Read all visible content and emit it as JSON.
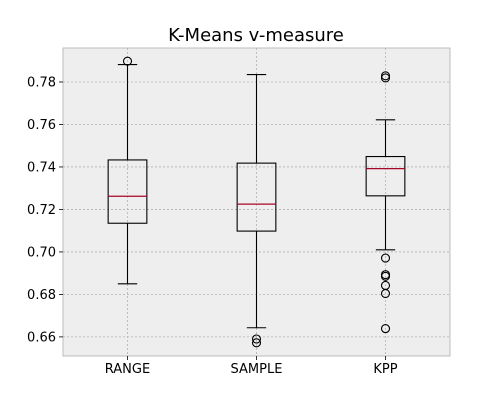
{
  "chart_data": {
    "type": "box",
    "title": "K-Means v-measure",
    "xlabel": "",
    "ylabel": "",
    "ylim": [
      0.651,
      0.796
    ],
    "yticks": [
      0.66,
      0.68,
      0.7,
      0.72,
      0.74,
      0.76,
      0.78
    ],
    "ytick_labels": [
      "0.66",
      "0.68",
      "0.70",
      "0.72",
      "0.74",
      "0.76",
      "0.78"
    ],
    "grid": true,
    "categories": [
      "RANGE",
      "SAMPLE",
      "KPP"
    ],
    "boxes": [
      {
        "name": "RANGE",
        "whisker_low": 0.685,
        "q1": 0.7135,
        "median": 0.7262,
        "q3": 0.7433,
        "whisker_high": 0.7882,
        "fliers": [
          0.7898
        ]
      },
      {
        "name": "SAMPLE",
        "whisker_low": 0.6643,
        "q1": 0.7098,
        "median": 0.7225,
        "q3": 0.7418,
        "whisker_high": 0.7835,
        "fliers": [
          0.659,
          0.6572
        ]
      },
      {
        "name": "KPP",
        "whisker_low": 0.701,
        "q1": 0.7264,
        "median": 0.7392,
        "q3": 0.7449,
        "whisker_high": 0.7622,
        "fliers": [
          0.7829,
          0.7819,
          0.6971,
          0.6893,
          0.6885,
          0.6842,
          0.6804,
          0.6639
        ]
      }
    ],
    "colors": {
      "figure_bg": "#ffffff",
      "axes_bg": "#eeeeee",
      "axes_edge": "#bcbcbc",
      "grid": "#b2b2b2",
      "box": "#000000",
      "median": "#a60628",
      "tick_label": "#000000"
    }
  }
}
